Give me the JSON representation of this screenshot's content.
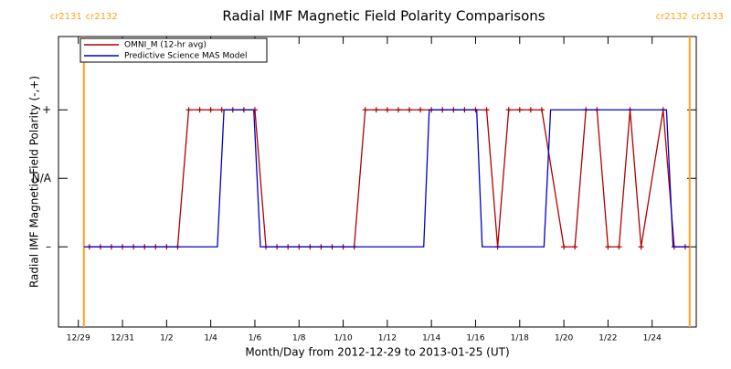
{
  "chart_data": {
    "type": "line",
    "title": "Radial IMF Magnetic Field Polarity Comparisons",
    "x_label": "Month/Day from 2012-12-29 to 2013-01-25 (UT)",
    "y_label": "Radial IMF Magnetic Field Polarity (-,+)",
    "xlim": [
      -0.9,
      28
    ],
    "xticks": [
      {
        "value": 0,
        "label": "12/29"
      },
      {
        "value": 2,
        "label": "12/31"
      },
      {
        "value": 4,
        "label": "1/2"
      },
      {
        "value": 6,
        "label": "1/4"
      },
      {
        "value": 8,
        "label": "1/6"
      },
      {
        "value": 10,
        "label": "1/8"
      },
      {
        "value": 12,
        "label": "1/10"
      },
      {
        "value": 14,
        "label": "1/12"
      },
      {
        "value": 16,
        "label": "1/14"
      },
      {
        "value": 18,
        "label": "1/16"
      },
      {
        "value": 20,
        "label": "1/18"
      },
      {
        "value": 22,
        "label": "1/20"
      },
      {
        "value": 24,
        "label": "1/22"
      },
      {
        "value": 26,
        "label": "1/24"
      }
    ],
    "ylim": [
      -2.17,
      2.07
    ],
    "yticks": [
      {
        "value": -1,
        "label": "–"
      },
      {
        "value": 0,
        "label": "N/A"
      },
      {
        "value": 1,
        "label": "+"
      }
    ],
    "legend": "upper left",
    "series": [
      {
        "name": "OMNI_M (12-hr avg)",
        "color": "#b00000",
        "marker": "+",
        "x": [
          0.5,
          1,
          1.5,
          2,
          2.5,
          3,
          3.5,
          4,
          4.5,
          5,
          5.5,
          6,
          6.5,
          7,
          7.5,
          8,
          8.5,
          9,
          9.5,
          10,
          10.5,
          11,
          11.5,
          12,
          12.5,
          13,
          13.5,
          14,
          14.5,
          15,
          15.5,
          16,
          16.5,
          17,
          17.5,
          18,
          18.5,
          19,
          19.5,
          20,
          20.5,
          21,
          22,
          22.5,
          23,
          23.5,
          24,
          24.5,
          25,
          25.5,
          26.5,
          27,
          27.5
        ],
        "values": [
          -1,
          -1,
          -1,
          -1,
          -1,
          -1,
          -1,
          -1,
          -1,
          1,
          1,
          1,
          1,
          1,
          1,
          1,
          -1,
          -1,
          -1,
          -1,
          -1,
          -1,
          -1,
          -1,
          -1,
          1,
          1,
          1,
          1,
          1,
          1,
          1,
          1,
          1,
          1,
          1,
          1,
          -1,
          1,
          1,
          1,
          1,
          -1,
          -1,
          1,
          1,
          -1,
          -1,
          1,
          -1,
          1,
          -1,
          -1
        ]
      },
      {
        "name": "Predictive Science MAS Model",
        "color": "#0000cc",
        "x": [
          0.25,
          6.3,
          6.6,
          7.95,
          8.25,
          15.65,
          15.9,
          18.05,
          18.3,
          21.1,
          21.4,
          26.65,
          26.95,
          27.7
        ],
        "values": [
          -1,
          -1,
          1,
          1,
          -1,
          -1,
          1,
          1,
          -1,
          -1,
          1,
          1,
          -1,
          -1
        ]
      }
    ],
    "carrington_boundaries": [
      {
        "x": 0.25,
        "labels": [
          "cr2131",
          "cr2132"
        ]
      },
      {
        "x": 27.7,
        "labels": [
          "cr2132",
          "cr2133"
        ]
      }
    ],
    "boundary_color": "#ffa020"
  }
}
